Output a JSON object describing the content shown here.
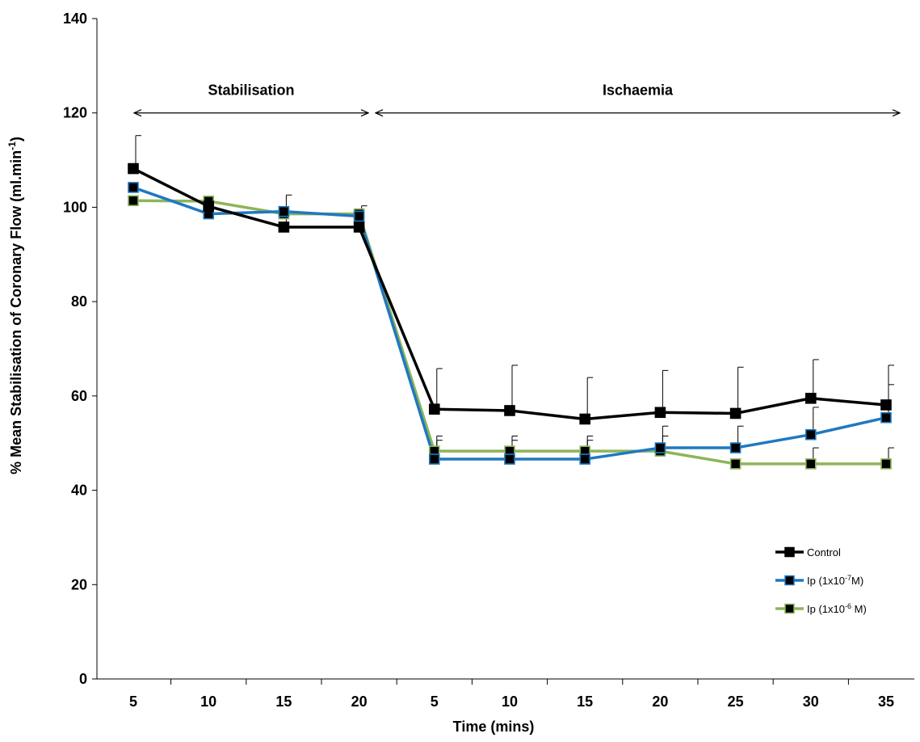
{
  "chart_data": {
    "type": "line",
    "title": "",
    "xlabel": "Time (mins)",
    "ylabel": {
      "main": "% Mean Stabilisation of Coronary Flow (ml.min",
      "sup": "-1",
      "end": ")"
    },
    "ylim": [
      0,
      140
    ],
    "yticks": [
      0,
      20,
      40,
      60,
      80,
      100,
      120,
      140
    ],
    "categories": [
      "5",
      "10",
      "15",
      "20",
      "5",
      "10",
      "15",
      "20",
      "25",
      "30",
      "35"
    ],
    "grid": false,
    "legend_position": "bottom-right",
    "phases": [
      {
        "label": "Stabilisation",
        "start_index": 0,
        "end_index": 3
      },
      {
        "label": "Ischaemia",
        "start_index": 4,
        "end_index": 10
      }
    ],
    "series": [
      {
        "name": "Control",
        "legend": {
          "pre": "Control",
          "sup": "",
          "post": ""
        },
        "color": "#000000",
        "values": [
          108.2,
          100.2,
          95.8,
          95.8,
          57.2,
          56.9,
          55.1,
          56.5,
          56.3,
          59.5,
          58.1
        ],
        "error": [
          7.0,
          null,
          6.8,
          4.5,
          8.6,
          9.6,
          8.8,
          8.9,
          9.8,
          8.2,
          8.4
        ]
      },
      {
        "name": "Ip (1x10-7M)",
        "legend": {
          "pre": "Ip (1x10",
          "sup": "-7",
          "post": "M)"
        },
        "color": "#1f78c1",
        "values": [
          104.2,
          98.6,
          99.1,
          98.1,
          46.6,
          46.6,
          46.6,
          49.0,
          49.0,
          51.8,
          55.4
        ],
        "error": [
          null,
          null,
          null,
          null,
          4.0,
          4.0,
          4.0,
          4.6,
          4.6,
          5.8,
          7.0
        ]
      },
      {
        "name": "Ip (1x10-6 M)",
        "legend": {
          "pre": "Ip (1x10",
          "sup": "-6",
          "post": " M)"
        },
        "color": "#8db559",
        "values": [
          101.4,
          101.3,
          98.6,
          98.6,
          48.3,
          48.3,
          48.3,
          48.3,
          45.6,
          45.6,
          45.6
        ],
        "error": [
          null,
          null,
          null,
          null,
          3.2,
          3.2,
          3.2,
          3.2,
          null,
          3.4,
          3.4
        ]
      }
    ]
  }
}
